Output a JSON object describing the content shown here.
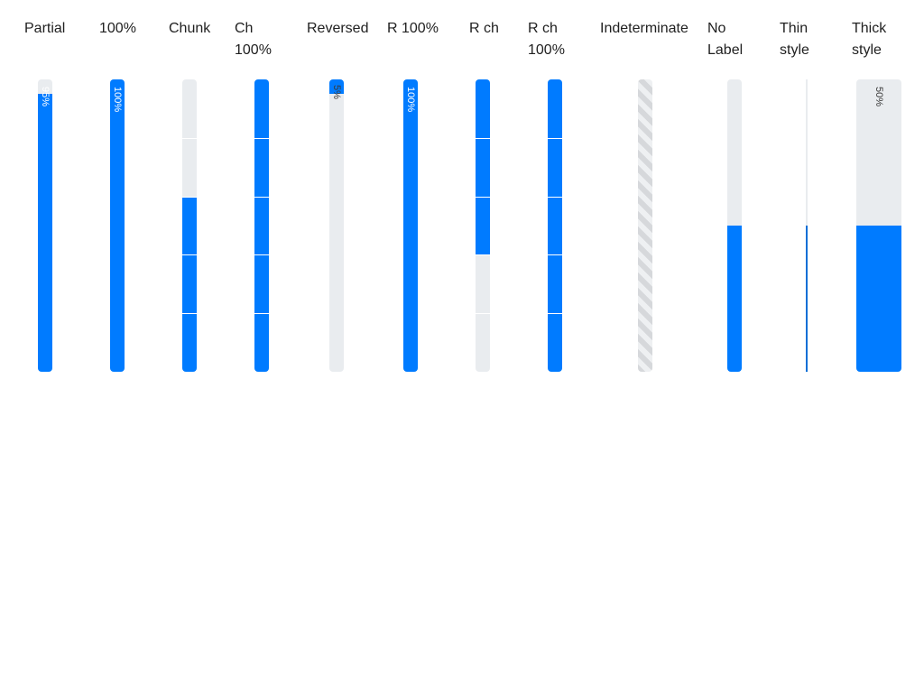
{
  "bars": [
    {
      "key": "partial",
      "label": "Partial",
      "value": 0.95,
      "value_label": "95%",
      "style": "normal",
      "chunks": 1
    },
    {
      "key": "full",
      "label": "100%",
      "value": 1.0,
      "value_label": "100%",
      "style": "normal",
      "chunks": 1
    },
    {
      "key": "chunk",
      "label": "Chunk",
      "value": 0.6,
      "value_label": "",
      "style": "normal",
      "chunks": 5
    },
    {
      "key": "chunk-full",
      "label": "Ch 100%",
      "value": 1.0,
      "value_label": "",
      "style": "normal",
      "chunks": 5
    },
    {
      "key": "reversed",
      "label": "Reversed",
      "value": 0.05,
      "value_label": "5%",
      "style": "reversed",
      "chunks": 1
    },
    {
      "key": "reversed-full",
      "label": "R 100%",
      "value": 1.0,
      "value_label": "100%",
      "style": "reversed",
      "chunks": 1
    },
    {
      "key": "reversed-chunk",
      "label": "R ch",
      "value": 0.6,
      "value_label": "",
      "style": "reversed",
      "chunks": 5
    },
    {
      "key": "reversed-chunk-full",
      "label": "R ch 100%",
      "value": 1.0,
      "value_label": "",
      "style": "reversed",
      "chunks": 5
    },
    {
      "key": "indeterminate",
      "label": "Indeterminate",
      "value": null,
      "value_label": "",
      "style": "indeterminate",
      "chunks": 1
    },
    {
      "key": "no-label",
      "label": "No Label",
      "value": 0.5,
      "value_label": "",
      "style": "normal",
      "chunks": 1
    },
    {
      "key": "thin",
      "label": "Thin style",
      "value": 0.5,
      "value_label": "",
      "style": "thin",
      "chunks": 1
    },
    {
      "key": "thick",
      "label": "Thick style",
      "value": 0.5,
      "value_label": "50%",
      "style": "thick",
      "chunks": 1
    }
  ],
  "colors": {
    "accent": "#007bff",
    "track": "#e9ecef",
    "label_text": "#212121"
  }
}
